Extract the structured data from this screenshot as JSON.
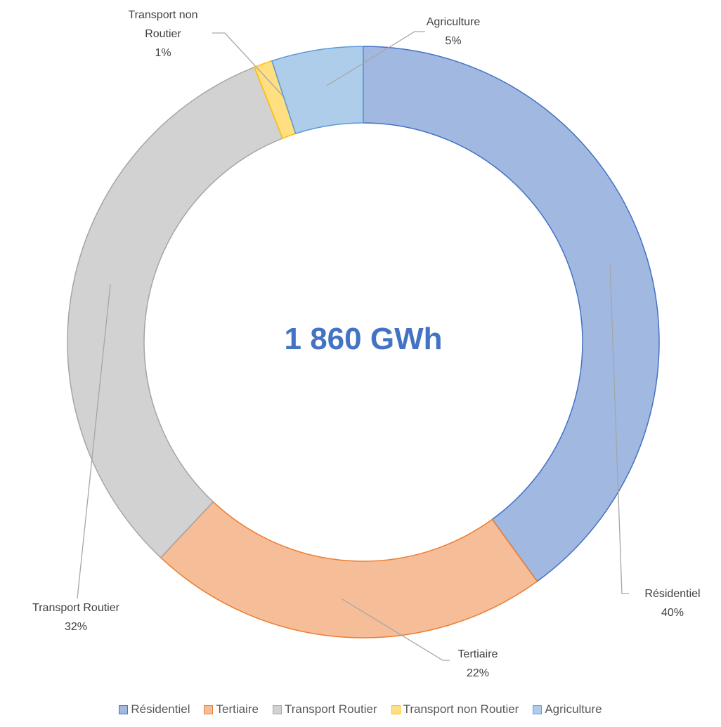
{
  "chart_data": {
    "type": "donut",
    "center_label": "1 860 GWh",
    "categories": [
      "Résidentiel",
      "Tertiaire",
      "Transport Routier",
      "Transport non Routier",
      "Agriculture"
    ],
    "values": [
      40,
      22,
      32,
      1,
      5
    ],
    "value_labels": [
      "40%",
      "22%",
      "32%",
      "1%",
      "5%"
    ],
    "colors": [
      "#4472c4",
      "#ed7d31",
      "#a5a5a5",
      "#ffc000",
      "#5b9bd5"
    ],
    "legend": "bottom"
  }
}
